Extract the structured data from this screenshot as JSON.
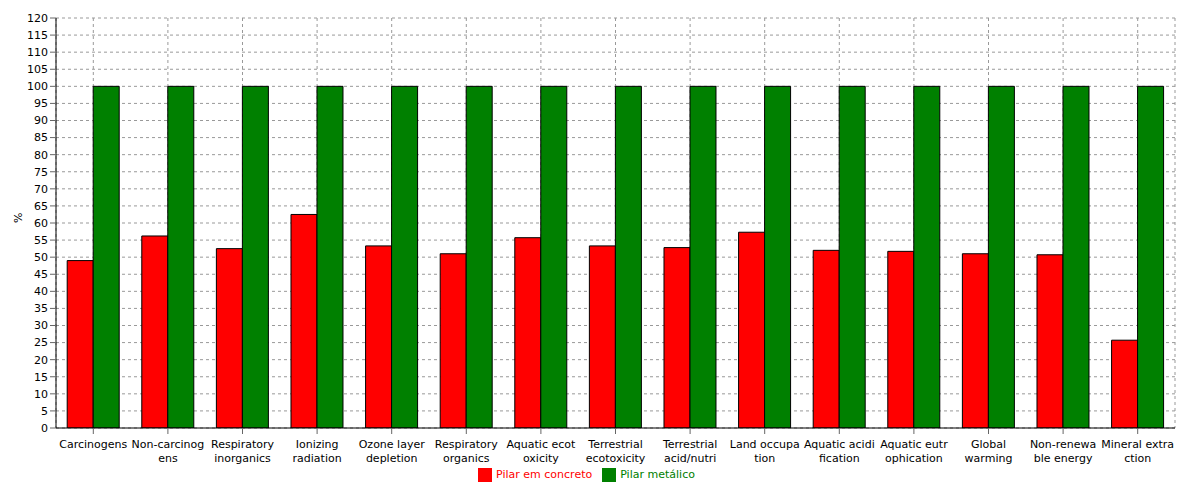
{
  "chart_data": {
    "type": "bar",
    "ylabel": "%",
    "categories": [
      "Carcinogens",
      "Non-carcinog\nens",
      "Respiratory\ninorganics",
      "Ionizing\nradiation",
      "Ozone layer\ndepletion",
      "Respiratory\norganics",
      "Aquatic ecot\noxicity",
      "Terrestrial\necotoxicity",
      "Terrestrial\nacid/nutri",
      "Land occupa\ntion",
      "Aquatic acidi\nfication",
      "Aquatic eutr\nophication",
      "Global\nwarming",
      "Non-renewa\nble energy",
      "Mineral extra\nction"
    ],
    "series": [
      {
        "name": "Pilar em concreto",
        "color": "#ff0000",
        "values": [
          49,
          56.2,
          52.5,
          62.5,
          53.3,
          51,
          55.7,
          53.3,
          52.8,
          57.3,
          52,
          51.7,
          51,
          50.7,
          25.7
        ]
      },
      {
        "name": "Pilar metálico",
        "color": "#008000",
        "values": [
          100,
          100,
          100,
          100,
          100,
          100,
          100,
          100,
          100,
          100,
          100,
          100,
          100,
          100,
          100
        ]
      }
    ],
    "ylim": [
      0,
      120
    ],
    "yticks": [
      0,
      5,
      10,
      15,
      20,
      25,
      30,
      35,
      40,
      45,
      50,
      55,
      60,
      65,
      70,
      75,
      80,
      85,
      90,
      95,
      100,
      105,
      110,
      115,
      120
    ],
    "grid": true,
    "legend": "bottom"
  }
}
